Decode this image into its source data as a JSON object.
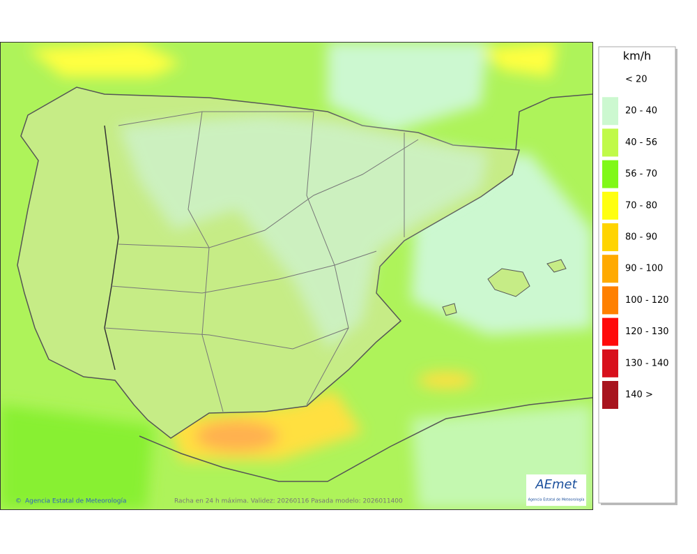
{
  "map": {
    "credit": "Agencia Estatal de Meteorología",
    "caption": "Racha en 24 h máxima. Validez: 20260116 Pasada modelo: 2026011400",
    "logo": {
      "name": "AEmet",
      "subtitle": "Agencia Estatal de Meteorología"
    }
  },
  "legend": {
    "title": "km/h",
    "items": [
      {
        "label": "< 20",
        "color": "#ffffff"
      },
      {
        "label": "20 - 40",
        "color": "#ccf8d0"
      },
      {
        "label": "40 - 56",
        "color": "#c0fa48"
      },
      {
        "label": "56 - 70",
        "color": "#80f818"
      },
      {
        "label": "70 - 80",
        "color": "#ffff10"
      },
      {
        "label": "80 - 90",
        "color": "#ffd400"
      },
      {
        "label": "90 - 100",
        "color": "#ffaa00"
      },
      {
        "label": "100 - 120",
        "color": "#ff8000"
      },
      {
        "label": "120 - 130",
        "color": "#ff0a0a"
      },
      {
        "label": "130 - 140",
        "color": "#d8101c"
      },
      {
        "label": "140 >",
        "color": "#a8141e"
      }
    ]
  }
}
